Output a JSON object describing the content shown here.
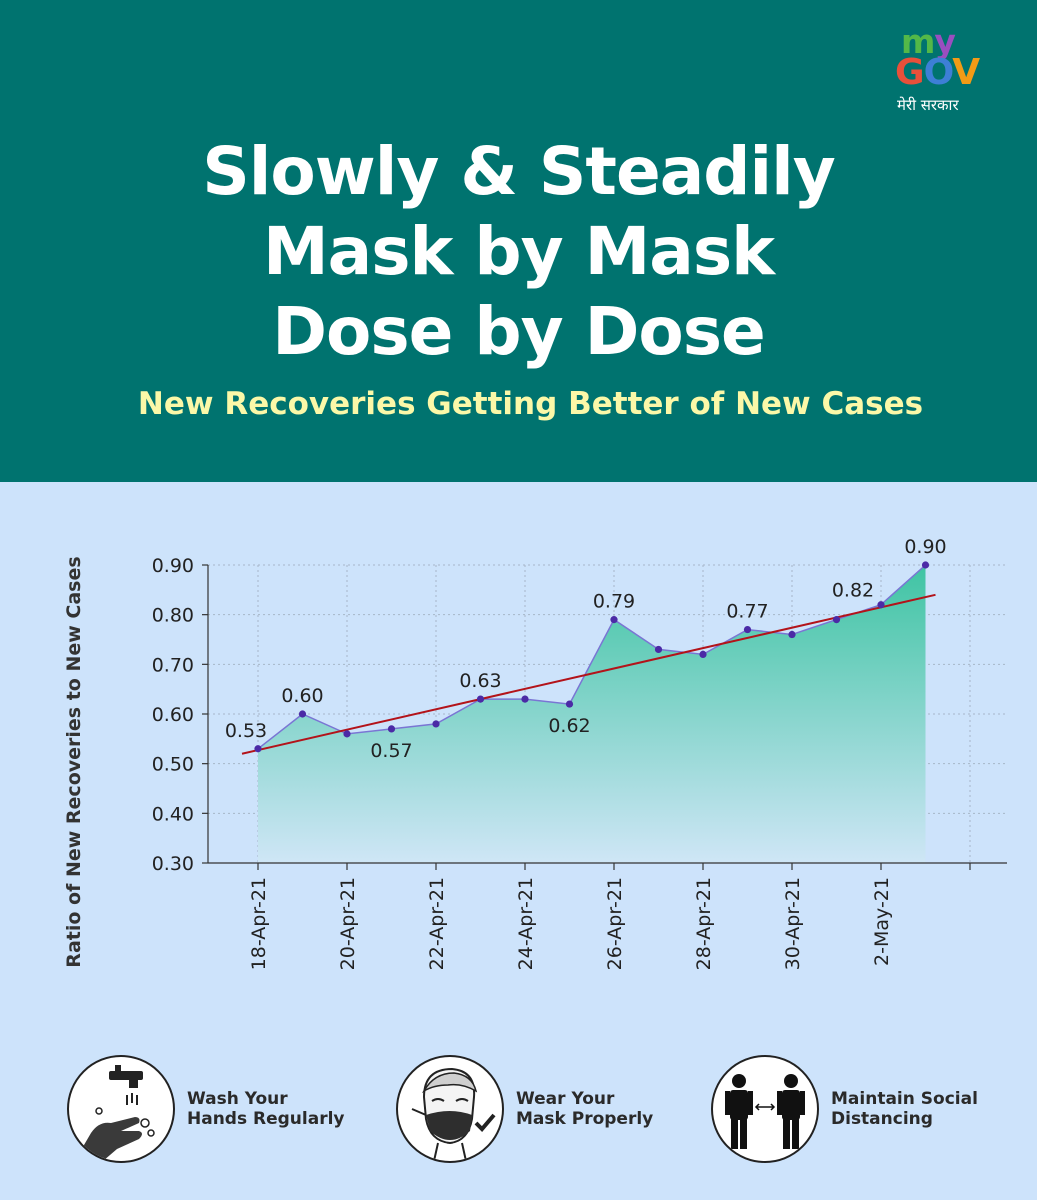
{
  "brand": {
    "logo_top": "my",
    "logo_main": "GOV",
    "logo_sub": "मेरी सरकार"
  },
  "title_lines": [
    "Slowly & Steadily",
    "Mask by Mask",
    "Dose by Dose"
  ],
  "subtitle": "New Recoveries Getting Better of New Cases",
  "colors": {
    "header": "#00736f",
    "background": "#cde3fb",
    "subtitle": "#fbf8a8",
    "line": "#7a75d4",
    "point": "#4b2aa6",
    "trend": "#b3131a",
    "area_top": "#3fc4a3",
    "area_bottom": "#cfe6f6"
  },
  "chart_data": {
    "type": "area",
    "x": [
      "18-Apr-21",
      "19-Apr-21",
      "20-Apr-21",
      "21-Apr-21",
      "22-Apr-21",
      "23-Apr-21",
      "24-Apr-21",
      "25-Apr-21",
      "26-Apr-21",
      "27-Apr-21",
      "28-Apr-21",
      "29-Apr-21",
      "30-Apr-21",
      "1-May-21",
      "2-May-21",
      "3-May-21"
    ],
    "series": [
      {
        "values": [
          0.53,
          0.6,
          0.56,
          0.57,
          0.58,
          0.63,
          0.63,
          0.62,
          0.79,
          0.73,
          0.72,
          0.77,
          0.76,
          0.79,
          0.82,
          0.9
        ]
      }
    ],
    "data_labels": [
      {
        "i": 0,
        "text": "0.53",
        "pos": "above"
      },
      {
        "i": 1,
        "text": "0.60",
        "pos": "above"
      },
      {
        "i": 3,
        "text": "0.57",
        "pos": "below"
      },
      {
        "i": 5,
        "text": "0.63",
        "pos": "above"
      },
      {
        "i": 7,
        "text": "0.62",
        "pos": "below"
      },
      {
        "i": 8,
        "text": "0.79",
        "pos": "above"
      },
      {
        "i": 11,
        "text": "0.77",
        "pos": "above"
      },
      {
        "i": 14,
        "text": "0.82",
        "pos": "above-left"
      },
      {
        "i": 15,
        "text": "0.90",
        "pos": "above"
      }
    ],
    "trendline": {
      "type": "linear",
      "from": 0.52,
      "to": 0.84
    },
    "ylabel": "Ratio of New Recoveries to New Cases",
    "xlabel": "",
    "ylim": [
      0.3,
      0.9
    ],
    "yticks": [
      "0.30",
      "0.40",
      "0.50",
      "0.60",
      "0.70",
      "0.80",
      "0.90"
    ],
    "xtick_labels": [
      "18-Apr-21",
      "20-Apr-21",
      "22-Apr-21",
      "24-Apr-21",
      "26-Apr-21",
      "28-Apr-21",
      "30-Apr-21",
      "2-May-21"
    ],
    "grid": true
  },
  "tips": [
    {
      "label": "Wash Your\nHands Regularly",
      "icon": "handwash-icon"
    },
    {
      "label": "Wear Your\nMask Properly",
      "icon": "mask-icon"
    },
    {
      "label": "Maintain Social\nDistancing",
      "icon": "social-distancing-icon"
    }
  ]
}
